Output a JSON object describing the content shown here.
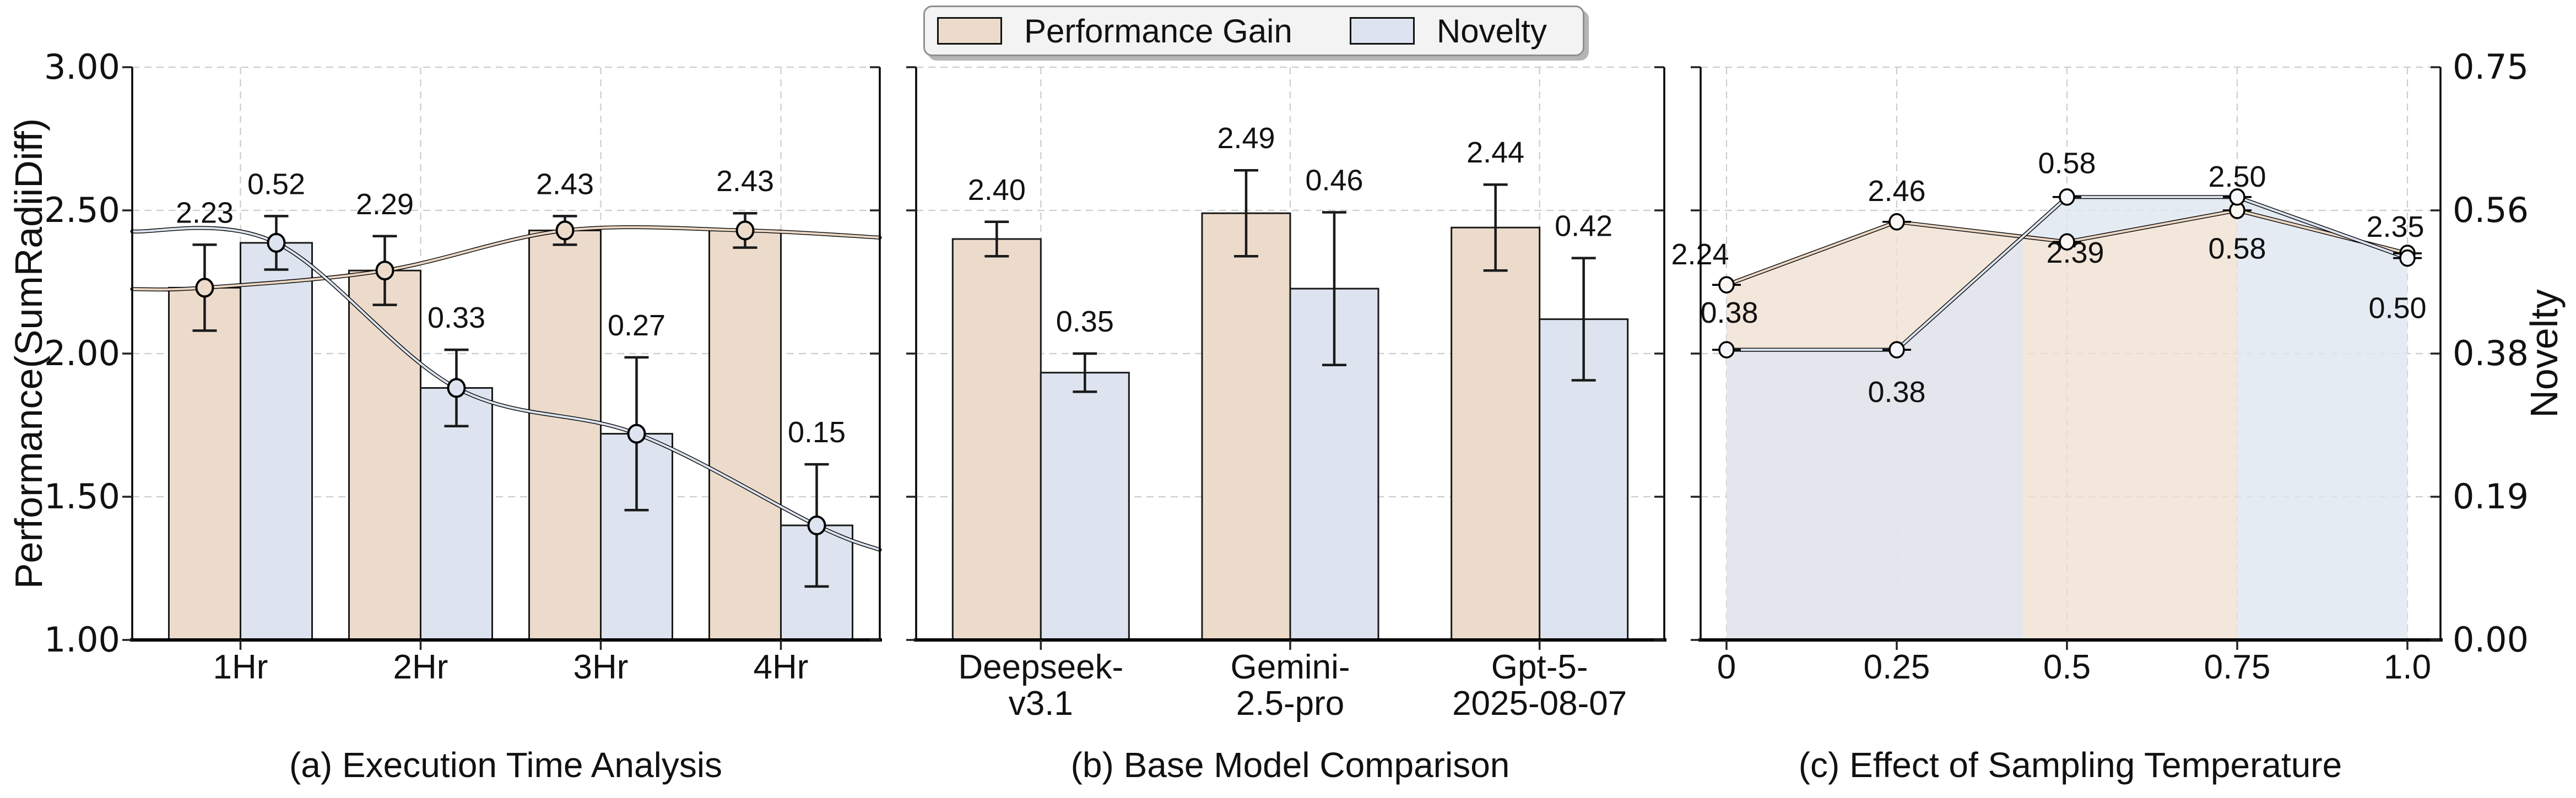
{
  "figure": {
    "left_axis": {
      "title": "Performance(SumRadiiDiff)",
      "ticks": [
        "3.00",
        "2.50",
        "2.00",
        "1.50",
        "1.00"
      ],
      "min": 1.0,
      "max": 3.0
    },
    "right_axis": {
      "title": "Novelty",
      "ticks": [
        "0.75",
        "0.56",
        "0.38",
        "0.19",
        "0.00"
      ],
      "min": 0.0,
      "max": 0.75
    },
    "legend": {
      "items": [
        {
          "label": "Performance Gain",
          "color": "#ecdbcb"
        },
        {
          "label": "Novelty",
          "color": "#dde4ef"
        }
      ]
    }
  },
  "chart_data": [
    {
      "id": "a",
      "type": "bar+line",
      "caption": "(a) Execution Time Analysis",
      "categories": [
        "1Hr",
        "2Hr",
        "3Hr",
        "4Hr"
      ],
      "series": [
        {
          "name": "Performance Gain",
          "axis": "left",
          "color": "#ecdbcb",
          "line_color": "#e9d5c2",
          "values": [
            2.23,
            2.29,
            2.43,
            2.43
          ],
          "labels": [
            "2.23",
            "2.29",
            "2.43",
            "2.43"
          ],
          "errors": [
            0.15,
            0.12,
            0.05,
            0.06
          ],
          "curve_ends": [
            2.225,
            2.405
          ]
        },
        {
          "name": "Novelty",
          "axis": "right",
          "color": "#dde4ef",
          "line_color": "#dae2ee",
          "values": [
            0.52,
            0.33,
            0.27,
            0.15
          ],
          "labels": [
            "0.52",
            "0.33",
            "0.27",
            "0.15"
          ],
          "errors": [
            0.035,
            0.05,
            0.1,
            0.08
          ],
          "curve_ends": [
            0.535,
            0.118
          ]
        }
      ]
    },
    {
      "id": "b",
      "type": "bar",
      "caption": "(b) Base Model Comparison",
      "categories": [
        "Deepseek-\nv3.1",
        "Gemini-\n2.5-pro",
        "Gpt-5-\n2025-08-07"
      ],
      "series": [
        {
          "name": "Performance Gain",
          "axis": "left",
          "color": "#ecdbcb",
          "values": [
            2.4,
            2.49,
            2.44
          ],
          "labels": [
            "2.40",
            "2.49",
            "2.44"
          ],
          "errors": [
            0.06,
            0.15,
            0.15
          ]
        },
        {
          "name": "Novelty",
          "axis": "right",
          "color": "#dde4ef",
          "values": [
            0.35,
            0.46,
            0.42
          ],
          "labels": [
            "0.35",
            "0.46",
            "0.42"
          ],
          "errors": [
            0.025,
            0.1,
            0.08
          ]
        }
      ]
    },
    {
      "id": "c",
      "type": "line-area",
      "caption": "(c) Effect of Sampling Temperature",
      "x": [
        0,
        0.25,
        0.5,
        0.75,
        1.0
      ],
      "x_ticklabels": [
        "0",
        "0.25",
        "0.5",
        "0.75",
        "1.0"
      ],
      "series": [
        {
          "name": "Performance Gain",
          "axis": "left",
          "area_color": "#efdfcf",
          "line_color": "#e9d5c2",
          "marker_fill": "#fbf8f4",
          "values": [
            2.24,
            2.46,
            2.39,
            2.5,
            2.35
          ],
          "labels": [
            "2.24",
            "2.46",
            "2.39",
            "2.50",
            "2.35"
          ],
          "label_offsets": [
            [
              -48,
              -55
            ],
            [
              0,
              -56
            ],
            [
              15,
              20
            ],
            [
              0,
              -61
            ],
            [
              -22,
              -48
            ]
          ]
        },
        {
          "name": "Novelty",
          "axis": "right",
          "area_color": "#dfe6f0",
          "line_color": "#dae2ee",
          "marker_fill": "#f4f6fa",
          "values": [
            0.38,
            0.38,
            0.58,
            0.58,
            0.5
          ],
          "labels": [
            "0.38",
            "0.38",
            "0.58",
            "0.58",
            "0.50"
          ],
          "label_offsets": [
            [
              5,
              -67
            ],
            [
              0,
              77
            ],
            [
              0,
              -61
            ],
            [
              0,
              94
            ],
            [
              -18,
              91
            ]
          ]
        }
      ]
    }
  ]
}
